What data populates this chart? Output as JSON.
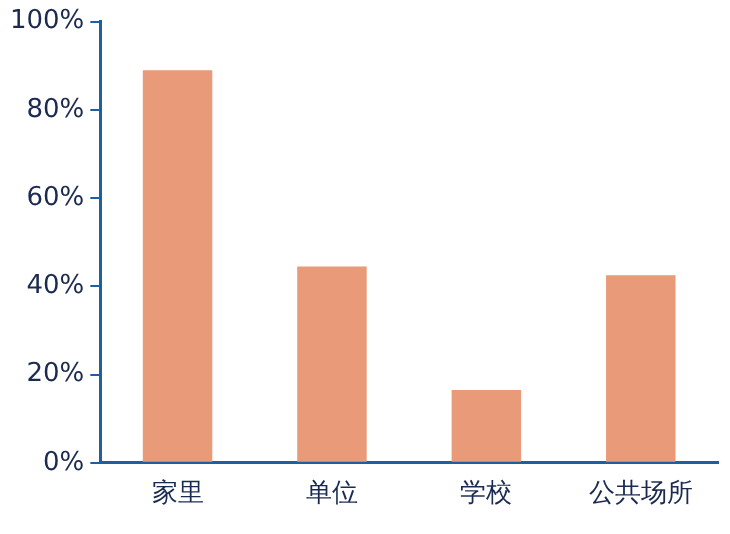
{
  "chart_data": {
    "type": "bar",
    "categories": [
      "家里",
      "单位",
      "学校",
      "公共场所"
    ],
    "values": [
      89,
      44.5,
      16.5,
      42.5
    ],
    "color": "#e99a78",
    "ylim": [
      0,
      100
    ],
    "yticks": [
      {
        "value": 0,
        "label": "0%"
      },
      {
        "value": 20,
        "label": "20%"
      },
      {
        "value": 40,
        "label": "40%"
      },
      {
        "value": 60,
        "label": "60%"
      },
      {
        "value": 80,
        "label": "80%"
      },
      {
        "value": 100,
        "label": "100%"
      }
    ],
    "grid": false,
    "legend": false
  }
}
